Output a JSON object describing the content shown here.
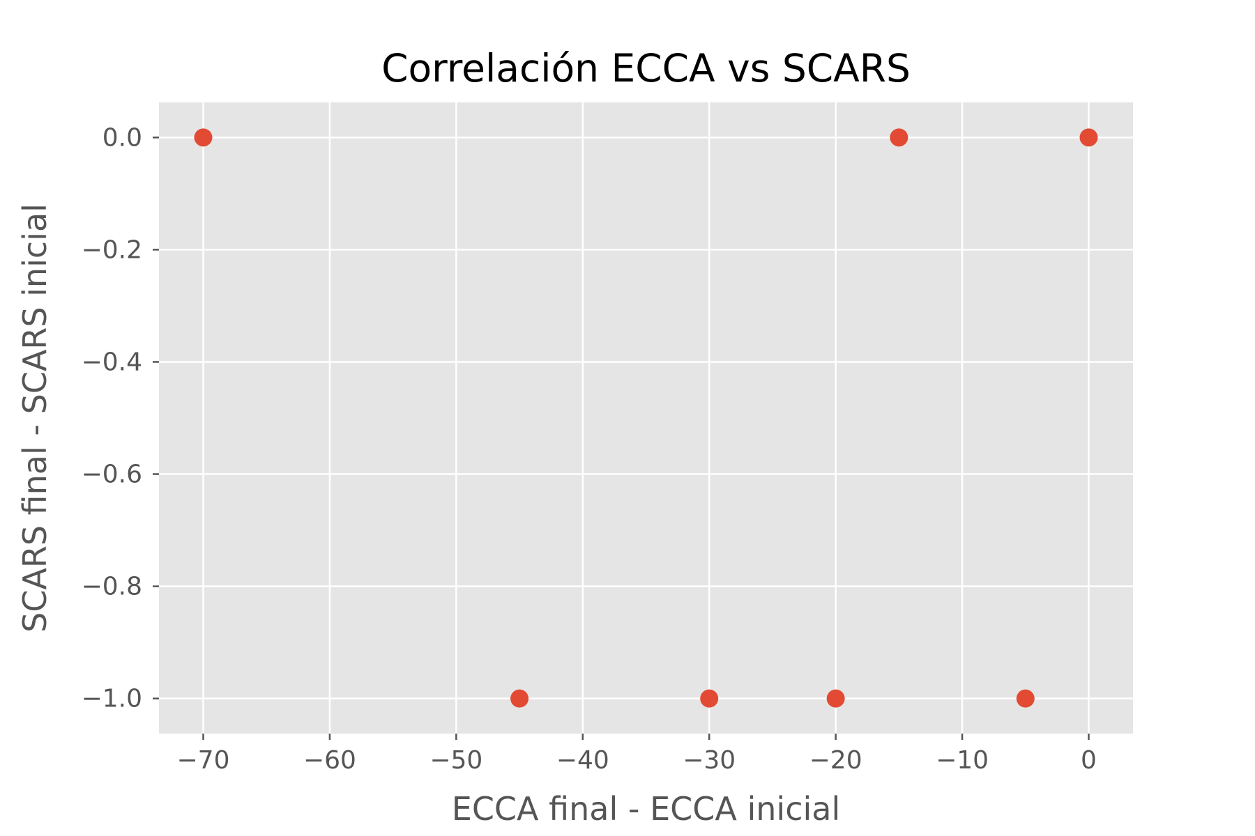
{
  "chart_data": {
    "type": "scatter",
    "title": "Correlación ECCA vs SCARS",
    "xlabel": "ECCA final - ECCA inicial",
    "ylabel": "SCARS final - SCARS inicial",
    "xlim": [
      -73.5,
      3.5
    ],
    "ylim": [
      -1.0625,
      0.0625
    ],
    "xticks": [
      -70,
      -60,
      -50,
      -40,
      -30,
      -20,
      -10,
      0
    ],
    "xtick_labels": [
      "−70",
      "−60",
      "−50",
      "−40",
      "−30",
      "−20",
      "−10",
      "0"
    ],
    "yticks": [
      0.0,
      -0.2,
      -0.4,
      -0.6,
      -0.8,
      -1.0
    ],
    "ytick_labels": [
      "0.0",
      "−0.2",
      "−0.4",
      "−0.6",
      "−0.8",
      "−1.0"
    ],
    "grid": true,
    "series": [
      {
        "points": [
          {
            "x": -70,
            "y": 0
          },
          {
            "x": -45,
            "y": -1
          },
          {
            "x": -30,
            "y": -1
          },
          {
            "x": -20,
            "y": -1
          },
          {
            "x": -15,
            "y": 0
          },
          {
            "x": -5,
            "y": -1
          },
          {
            "x": 0,
            "y": 0
          }
        ]
      }
    ],
    "colors": {
      "marker": "#E24A33",
      "plot_background": "#E5E5E5",
      "grid": "#FFFFFF",
      "tick_text": "#555555",
      "title_text": "#000000"
    }
  }
}
